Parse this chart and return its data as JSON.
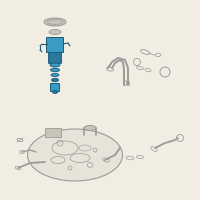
{
  "bg_color": "#f2ede3",
  "lc": "#9a9a9a",
  "hc": "#3a9bc4",
  "hc2": "#2a7a9e",
  "hc_dark": "#1a5a7a",
  "tank_fc": "#e8e3d8",
  "gray_fc": "#c8c4b8"
}
